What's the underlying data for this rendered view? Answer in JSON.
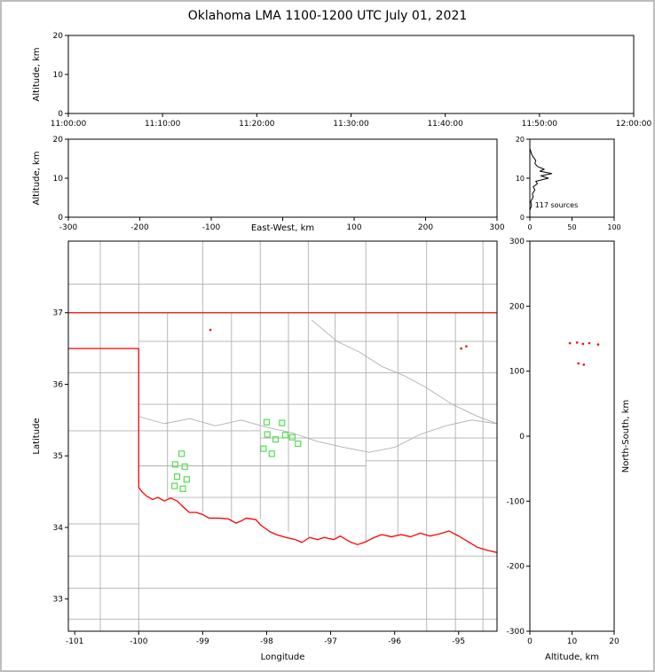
{
  "title": "Oklahoma LMA 1100-1200 UTC July 01, 2021",
  "chart_data": [
    {
      "id": "time_height",
      "type": "scatter",
      "xlim": [
        0,
        3600
      ],
      "xticks": [
        0,
        600,
        1200,
        1800,
        2400,
        3000,
        3600
      ],
      "xtick_labels": [
        "11:00:00",
        "11:10:00",
        "11:20:00",
        "11:30:00",
        "11:40:00",
        "11:50:00",
        "12:00:00"
      ],
      "ylim": [
        0,
        20
      ],
      "yticks": [
        0,
        10,
        20
      ],
      "ylabel": "Altitude, km",
      "series": []
    },
    {
      "id": "ew_height",
      "type": "scatter",
      "xlim": [
        -300,
        300
      ],
      "xticks": [
        -300,
        -200,
        -100,
        0,
        100,
        200,
        300
      ],
      "xtick_labels": [
        "-300",
        "-200",
        "-100",
        "",
        "100",
        "200",
        "300"
      ],
      "xlabel": "East-West, km",
      "xlabel_dy": 15,
      "ylim": [
        0,
        20
      ],
      "yticks": [
        0,
        10,
        20
      ],
      "ylabel": "Altitude, km",
      "series": []
    },
    {
      "id": "alt_hist",
      "type": "line",
      "tick_size": 8,
      "xlim": [
        0,
        100
      ],
      "xticks": [
        0,
        50,
        100
      ],
      "ylim": [
        0,
        20
      ],
      "yticks": [
        0,
        10,
        20
      ],
      "annotation": {
        "text": "117 sources",
        "x": 6,
        "y": 2.5,
        "size": 8
      },
      "series": [
        {
          "name": "altitude-source-histogram",
          "kind": "line",
          "color": "#000000",
          "width": 1,
          "points": [
            [
              0,
              1.8
            ],
            [
              2,
              3
            ],
            [
              1,
              4
            ],
            [
              4,
              5.2
            ],
            [
              3,
              6
            ],
            [
              6,
              7
            ],
            [
              4,
              7.8
            ],
            [
              9,
              8.6
            ],
            [
              7,
              9.2
            ],
            [
              22,
              10
            ],
            [
              13,
              10.6
            ],
            [
              26,
              11.2
            ],
            [
              12,
              11.8
            ],
            [
              17,
              12.3
            ],
            [
              9,
              13
            ],
            [
              6,
              13.8
            ],
            [
              7,
              14.6
            ],
            [
              4,
              15.4
            ],
            [
              2,
              16.2
            ],
            [
              1,
              17
            ],
            [
              0,
              17.6
            ]
          ]
        }
      ]
    },
    {
      "id": "map",
      "type": "scatter",
      "xlim": [
        -101.1,
        -94.4
      ],
      "xticks": [
        -101,
        -100,
        -99,
        -98,
        -97,
        -96,
        -95
      ],
      "xlabel": "Longitude",
      "xlabel_dy": 32,
      "ylim": [
        32.55,
        38.0
      ],
      "yticks": [
        33,
        34,
        35,
        36,
        37
      ],
      "ylabel": "Latitude",
      "series": [
        {
          "name": "county-borders",
          "kind": "lines",
          "color": "#b0b0b0",
          "width": 0.9,
          "polylines": [
            [
              [
                -100.6,
                38.0
              ],
              [
                -100.6,
                32.55
              ]
            ],
            [
              [
                -100.0,
                38.0
              ],
              [
                -100.0,
                36.5
              ]
            ],
            [
              [
                -100.0,
                34.56
              ],
              [
                -100.0,
                32.55
              ]
            ],
            [
              [
                -99.55,
                37.0
              ],
              [
                -99.55,
                34.4
              ]
            ],
            [
              [
                -99.0,
                38.0
              ],
              [
                -99.0,
                34.2
              ]
            ],
            [
              [
                -98.55,
                37.0
              ],
              [
                -98.55,
                34.08
              ]
            ],
            [
              [
                -98.1,
                38.0
              ],
              [
                -98.1,
                34.12
              ]
            ],
            [
              [
                -97.66,
                37.0
              ],
              [
                -97.66,
                33.94
              ]
            ],
            [
              [
                -97.35,
                38.0
              ],
              [
                -97.35,
                33.86
              ]
            ],
            [
              [
                -96.93,
                37.0
              ],
              [
                -96.93,
                33.84
              ]
            ],
            [
              [
                -96.45,
                38.0
              ],
              [
                -96.45,
                33.79
              ]
            ],
            [
              [
                -95.95,
                37.0
              ],
              [
                -95.95,
                33.88
              ]
            ],
            [
              [
                -95.5,
                38.0
              ],
              [
                -95.5,
                32.55
              ]
            ],
            [
              [
                -95.05,
                37.0
              ],
              [
                -95.05,
                32.55
              ]
            ],
            [
              [
                -94.62,
                38.0
              ],
              [
                -94.62,
                32.55
              ]
            ],
            [
              [
                -101.1,
                37.4
              ],
              [
                -94.4,
                37.4
              ]
            ],
            [
              [
                -100.0,
                36.6
              ],
              [
                -94.4,
                36.6
              ]
            ],
            [
              [
                -101.1,
                36.16
              ],
              [
                -94.4,
                36.16
              ]
            ],
            [
              [
                -100.0,
                35.72
              ],
              [
                -94.4,
                35.72
              ]
            ],
            [
              [
                -101.1,
                35.35
              ],
              [
                -98.1,
                35.35
              ]
            ],
            [
              [
                -98.1,
                35.25
              ],
              [
                -94.4,
                35.25
              ]
            ],
            [
              [
                -100.0,
                34.86
              ],
              [
                -96.45,
                34.86
              ]
            ],
            [
              [
                -96.45,
                34.93
              ],
              [
                -94.4,
                34.93
              ]
            ],
            [
              [
                -99.55,
                34.42
              ],
              [
                -94.4,
                34.42
              ]
            ],
            [
              [
                -101.1,
                34.05
              ],
              [
                -100.0,
                34.05
              ]
            ],
            [
              [
                -101.1,
                33.6
              ],
              [
                -94.4,
                33.6
              ]
            ],
            [
              [
                -101.1,
                33.15
              ],
              [
                -94.4,
                33.15
              ]
            ],
            [
              [
                -101.1,
                32.72
              ],
              [
                -94.4,
                32.72
              ]
            ]
          ]
        },
        {
          "name": "rivers",
          "kind": "lines",
          "color": "#b0b0b0",
          "width": 0.9,
          "polylines": [
            [
              [
                -100.0,
                35.55
              ],
              [
                -99.6,
                35.45
              ],
              [
                -99.2,
                35.52
              ],
              [
                -98.8,
                35.42
              ],
              [
                -98.4,
                35.5
              ],
              [
                -98.0,
                35.4
              ],
              [
                -97.6,
                35.32
              ],
              [
                -97.2,
                35.2
              ],
              [
                -96.8,
                35.12
              ],
              [
                -96.4,
                35.05
              ],
              [
                -96.0,
                35.12
              ],
              [
                -95.6,
                35.3
              ],
              [
                -95.2,
                35.42
              ],
              [
                -94.8,
                35.5
              ],
              [
                -94.4,
                35.45
              ]
            ],
            [
              [
                -97.3,
                36.9
              ],
              [
                -96.9,
                36.6
              ],
              [
                -96.55,
                36.45
              ],
              [
                -96.2,
                36.25
              ],
              [
                -95.85,
                36.12
              ],
              [
                -95.5,
                35.95
              ],
              [
                -95.1,
                35.72
              ],
              [
                -94.7,
                35.55
              ],
              [
                -94.4,
                35.45
              ]
            ]
          ]
        },
        {
          "name": "kansas-border",
          "kind": "lines",
          "color": "#ff0000",
          "width": 1.3,
          "polylines": [
            [
              [
                -101.1,
                37.0
              ],
              [
                -94.4,
                37.0
              ]
            ]
          ]
        },
        {
          "name": "oklahoma-border",
          "kind": "lines",
          "color": "#ff0000",
          "width": 1.3,
          "polylines": [
            [
              [
                -101.1,
                36.5
              ],
              [
                -100.0,
                36.5
              ],
              [
                -100.0,
                34.56
              ],
              [
                -99.95,
                34.5
              ],
              [
                -99.88,
                34.44
              ],
              [
                -99.78,
                34.39
              ],
              [
                -99.7,
                34.42
              ],
              [
                -99.6,
                34.37
              ],
              [
                -99.5,
                34.41
              ],
              [
                -99.4,
                34.37
              ],
              [
                -99.32,
                34.3
              ],
              [
                -99.21,
                34.21
              ],
              [
                -99.1,
                34.21
              ],
              [
                -99.0,
                34.18
              ],
              [
                -98.9,
                34.13
              ],
              [
                -98.75,
                34.13
              ],
              [
                -98.6,
                34.12
              ],
              [
                -98.48,
                34.06
              ],
              [
                -98.4,
                34.09
              ],
              [
                -98.32,
                34.13
              ],
              [
                -98.17,
                34.11
              ],
              [
                -98.09,
                34.03
              ],
              [
                -97.95,
                33.94
              ],
              [
                -97.85,
                33.9
              ],
              [
                -97.7,
                33.86
              ],
              [
                -97.55,
                33.83
              ],
              [
                -97.45,
                33.79
              ],
              [
                -97.33,
                33.86
              ],
              [
                -97.2,
                33.83
              ],
              [
                -97.1,
                33.86
              ],
              [
                -96.95,
                33.83
              ],
              [
                -96.85,
                33.88
              ],
              [
                -96.7,
                33.8
              ],
              [
                -96.58,
                33.76
              ],
              [
                -96.45,
                33.8
              ],
              [
                -96.32,
                33.86
              ],
              [
                -96.2,
                33.9
              ],
              [
                -96.05,
                33.87
              ],
              [
                -95.9,
                33.9
              ],
              [
                -95.75,
                33.87
              ],
              [
                -95.6,
                33.92
              ],
              [
                -95.45,
                33.88
              ],
              [
                -95.3,
                33.91
              ],
              [
                -95.15,
                33.95
              ],
              [
                -95.0,
                33.88
              ],
              [
                -94.85,
                33.8
              ],
              [
                -94.7,
                33.72
              ],
              [
                -94.55,
                33.68
              ],
              [
                -94.4,
                33.65
              ]
            ]
          ]
        },
        {
          "name": "lma-stations",
          "kind": "squares",
          "color": "#55dd55",
          "size": 6,
          "points": [
            [
              -98.0,
              35.47
            ],
            [
              -97.76,
              35.46
            ],
            [
              -97.99,
              35.3
            ],
            [
              -97.86,
              35.23
            ],
            [
              -97.71,
              35.29
            ],
            [
              -97.6,
              35.26
            ],
            [
              -97.51,
              35.17
            ],
            [
              -98.05,
              35.1
            ],
            [
              -97.92,
              35.03
            ],
            [
              -99.33,
              35.03
            ],
            [
              -99.43,
              34.88
            ],
            [
              -99.28,
              34.85
            ],
            [
              -99.4,
              34.71
            ],
            [
              -99.25,
              34.67
            ],
            [
              -99.44,
              34.58
            ],
            [
              -99.31,
              34.54
            ]
          ]
        },
        {
          "name": "vhf-sources-map",
          "kind": "dots",
          "color": "#ff0000",
          "r": 1.3,
          "points": [
            [
              -98.88,
              36.76
            ],
            [
              -94.96,
              36.5
            ],
            [
              -94.88,
              36.53
            ]
          ]
        }
      ]
    },
    {
      "id": "ns_alt",
      "type": "scatter",
      "xlim": [
        0,
        20
      ],
      "xticks": [
        0,
        10,
        20
      ],
      "xlabel": "Altitude, km",
      "xlabel_dy": 32,
      "ylim": [
        -300,
        300
      ],
      "yticks": [
        -300,
        -200,
        -100,
        0,
        100,
        200,
        300
      ],
      "ylabel_right": "North-South, km",
      "series": [
        {
          "name": "vhf-sources-ns",
          "kind": "dots",
          "color": "#ff0000",
          "r": 1.3,
          "points": [
            [
              9.5,
              143
            ],
            [
              11.2,
              144
            ],
            [
              12.6,
              142
            ],
            [
              14.1,
              143
            ],
            [
              16.2,
              141
            ],
            [
              11.5,
              112
            ],
            [
              12.8,
              110
            ]
          ]
        }
      ]
    }
  ]
}
